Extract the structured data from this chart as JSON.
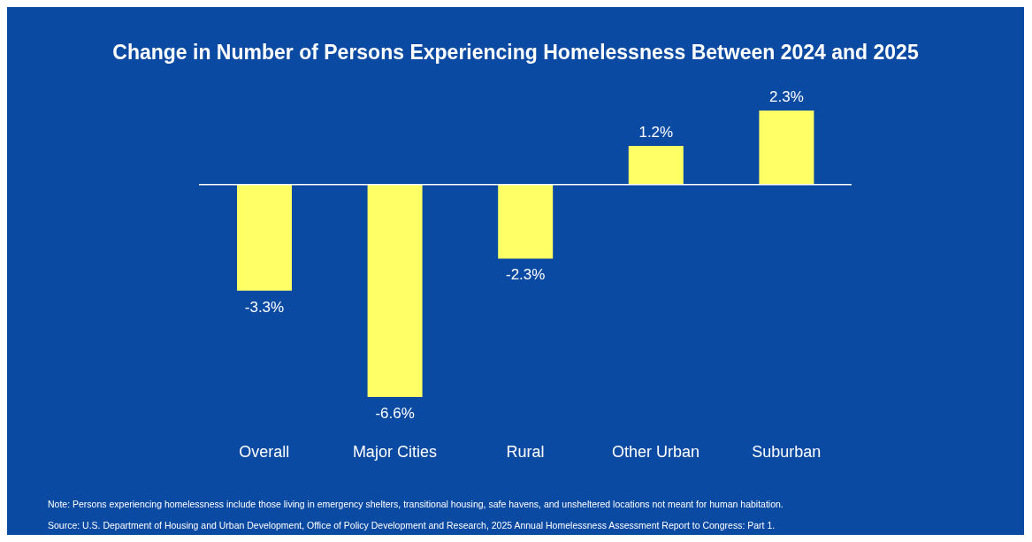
{
  "chart_data": {
    "type": "bar",
    "title": "Change in Number of Persons Experiencing Homelessness Between 2024 and 2025",
    "categories": [
      "Overall",
      "Major Cities",
      "Rural",
      "Other Urban",
      "Suburban"
    ],
    "values": [
      -3.3,
      -6.6,
      -2.3,
      1.2,
      2.3
    ],
    "value_labels": [
      "-3.3%",
      "-6.6%",
      "-2.3%",
      "1.2%",
      "2.3%"
    ],
    "color": "#ffff66",
    "annotations": [
      "Note: Persons experiencing homelessness include those living in emergency shelters, transitional housing, safe havens, and unsheltered locations not meant for human habitation.",
      "Source: U.S. Department of Housing and Urban Development, Office of Policy Development and Research, 2025 Annual Homelessness Assessment Report to Congress: Part 1."
    ]
  }
}
